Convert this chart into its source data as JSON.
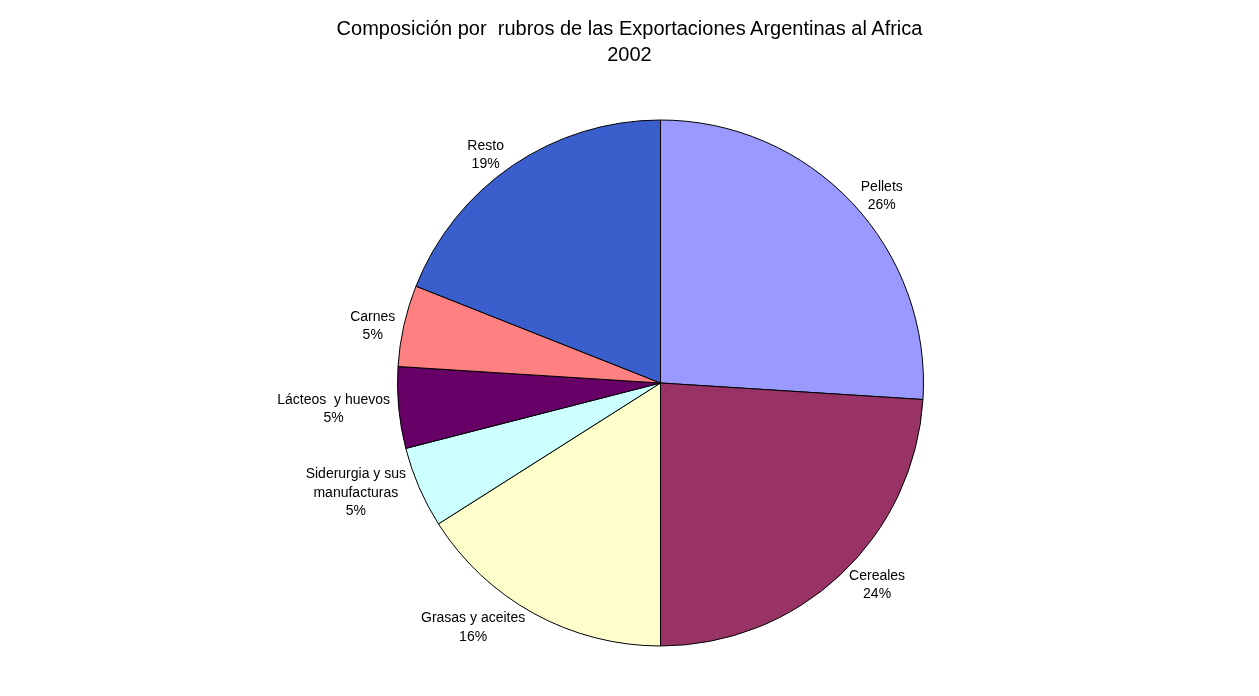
{
  "chart_data": {
    "type": "pie",
    "title": "Composición por  rubros de las Exportaciones Argentinas al Africa\n2002",
    "categories": [
      "Pellets",
      "Cereales",
      "Grasas y aceites",
      "Siderurgia y sus\nmanufacturas",
      "Lácteos  y huevos",
      "Carnes",
      "Resto"
    ],
    "values": [
      26,
      24,
      16,
      5,
      5,
      5,
      19
    ],
    "value_labels": [
      "26%",
      "24%",
      "16%",
      "5%",
      "5%",
      "5%",
      "19%"
    ],
    "colors": [
      "#9999ff",
      "#993366",
      "#ffffcc",
      "#ccffff",
      "#660066",
      "#ff8080",
      "#3a5fcd"
    ],
    "legend": false
  }
}
